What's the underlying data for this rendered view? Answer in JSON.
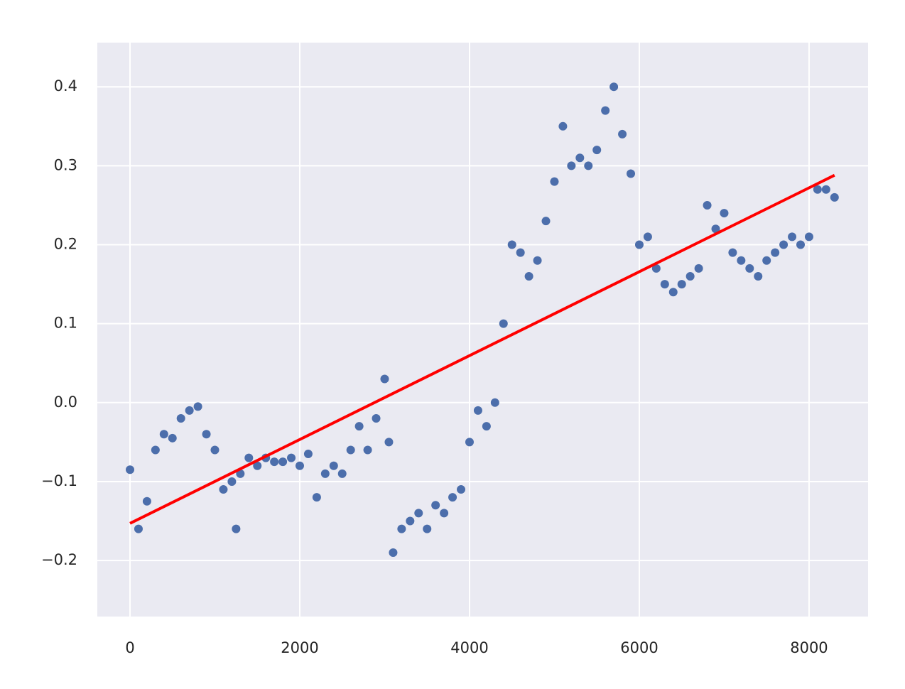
{
  "chart_data": {
    "type": "scatter",
    "series": [
      {
        "type": "scatter",
        "color": "#4c6eab",
        "x": [
          0,
          100,
          200,
          300,
          400,
          500,
          600,
          700,
          800,
          900,
          1000,
          1100,
          1200,
          1250,
          1300,
          1400,
          1500,
          1600,
          1700,
          1800,
          1900,
          2000,
          2100,
          2200,
          2300,
          2400,
          2500,
          2600,
          2700,
          2800,
          2900,
          3000,
          3050,
          3100,
          3200,
          3300,
          3400,
          3500,
          3600,
          3700,
          3800,
          3900,
          4000,
          4100,
          4200,
          4300,
          4400,
          4500,
          4600,
          4700,
          4800,
          4900,
          5000,
          5100,
          5200,
          5300,
          5400,
          5500,
          5600,
          5700,
          5800,
          5900,
          6000,
          6100,
          6200,
          6300,
          6400,
          6500,
          6600,
          6700,
          6800,
          6900,
          7000,
          7100,
          7200,
          7300,
          7400,
          7500,
          7600,
          7700,
          7800,
          7900,
          8000,
          8100,
          8200,
          8300
        ],
        "values": [
          -0.085,
          -0.16,
          -0.125,
          -0.06,
          -0.04,
          -0.045,
          -0.02,
          -0.01,
          -0.005,
          -0.04,
          -0.06,
          -0.11,
          -0.1,
          -0.16,
          -0.09,
          -0.07,
          -0.08,
          -0.07,
          -0.075,
          -0.075,
          -0.07,
          -0.08,
          -0.065,
          -0.12,
          -0.09,
          -0.08,
          -0.09,
          -0.06,
          -0.03,
          -0.06,
          -0.02,
          0.03,
          -0.05,
          -0.19,
          -0.16,
          -0.15,
          -0.14,
          -0.16,
          -0.13,
          -0.14,
          -0.12,
          -0.11,
          -0.05,
          -0.01,
          -0.03,
          0.0,
          0.1,
          0.2,
          0.19,
          0.16,
          0.18,
          0.23,
          0.28,
          0.35,
          0.3,
          0.31,
          0.3,
          0.32,
          0.37,
          0.4,
          0.34,
          0.29,
          0.2,
          0.21,
          0.17,
          0.15,
          0.14,
          0.15,
          0.16,
          0.17,
          0.25,
          0.22,
          0.24,
          0.19,
          0.18,
          0.17,
          0.16,
          0.18,
          0.19,
          0.2,
          0.21,
          0.2,
          0.21,
          0.27,
          0.27,
          0.26
        ]
      },
      {
        "type": "line",
        "color": "#ff0000",
        "x": [
          0,
          8300
        ],
        "values": [
          -0.153,
          0.288
        ]
      }
    ],
    "xlim": [
      -385,
      8695
    ],
    "xticks": [
      0,
      2000,
      4000,
      6000,
      8000
    ],
    "ylim": [
      -0.271,
      0.456
    ],
    "yticks": [
      {
        "value": -0.2,
        "label": "−0.2"
      },
      {
        "value": -0.1,
        "label": "−0.1"
      },
      {
        "value": 0,
        "label": "0.0"
      },
      0.1,
      0.2,
      0.3,
      0.4
    ],
    "grid": true
  }
}
